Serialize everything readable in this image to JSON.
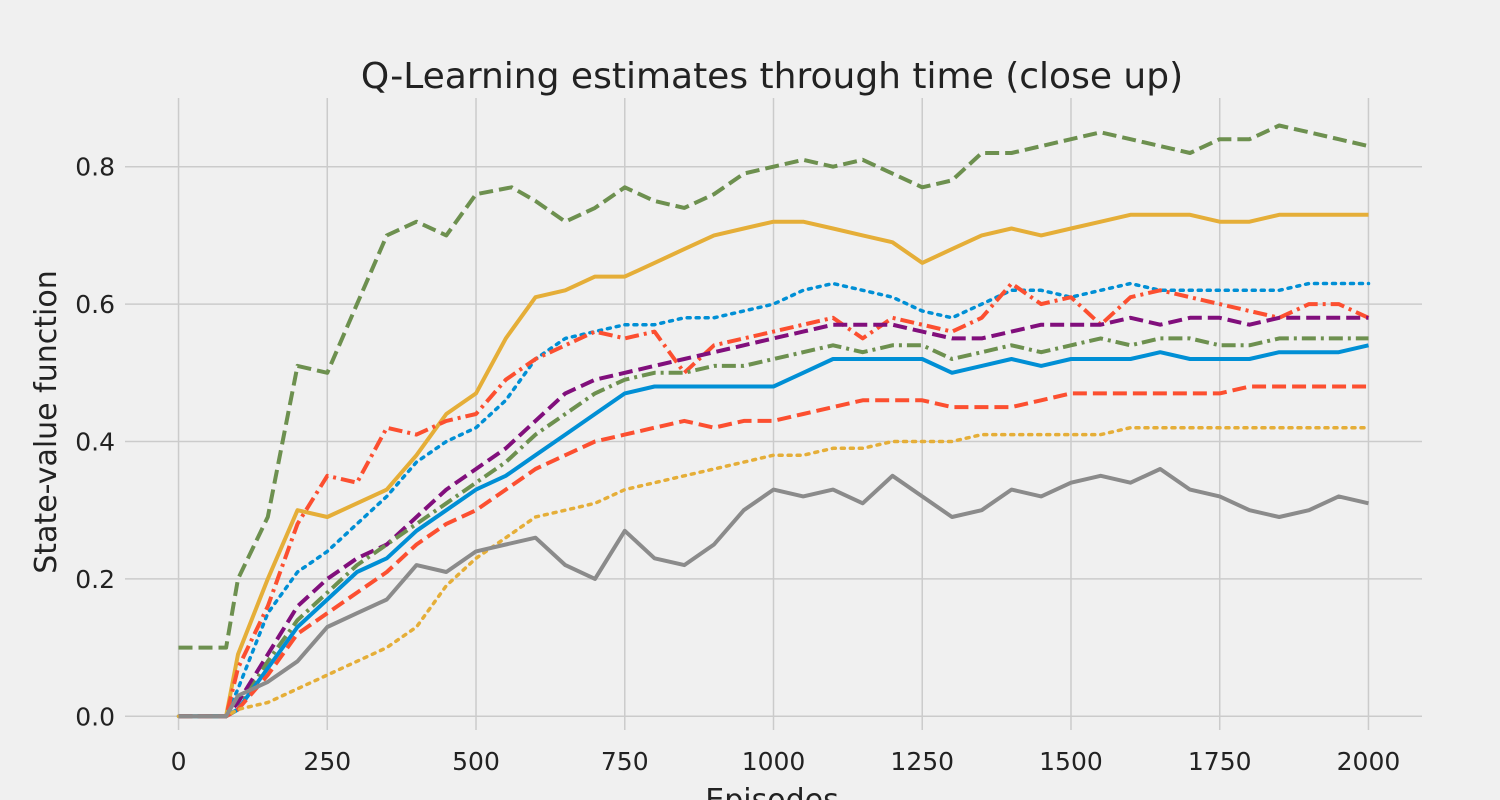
{
  "chart_data": {
    "type": "line",
    "title": "Q-Learning estimates through time (close up)",
    "xlabel": "Episodes",
    "ylabel": "State-value function",
    "xlim": [
      -90,
      2090
    ],
    "ylim": [
      -0.02,
      0.9
    ],
    "xticks": [
      0,
      250,
      500,
      750,
      1000,
      1250,
      1500,
      1750,
      2000
    ],
    "yticks": [
      0.0,
      0.2,
      0.4,
      0.6,
      0.8
    ],
    "xtick_labels": [
      "0",
      "250",
      "500",
      "750",
      "1000",
      "1250",
      "1500",
      "1750",
      "2000"
    ],
    "ytick_labels": [
      "0.0",
      "0.2",
      "0.4",
      "0.6",
      "0.8"
    ],
    "grid": true,
    "legend": "none",
    "series": [
      {
        "color": "#6d904f",
        "style": "dashed",
        "x": [
          0,
          80,
          100,
          150,
          200,
          250,
          300,
          350,
          400,
          450,
          500,
          560,
          600,
          650,
          700,
          750,
          800,
          850,
          900,
          950,
          1000,
          1050,
          1100,
          1150,
          1200,
          1250,
          1300,
          1350,
          1400,
          1450,
          1500,
          1550,
          1600,
          1650,
          1700,
          1750,
          1800,
          1850,
          1900,
          1950,
          2000
        ],
        "y": [
          0.1,
          0.1,
          0.2,
          0.29,
          0.51,
          0.5,
          0.6,
          0.7,
          0.72,
          0.7,
          0.76,
          0.77,
          0.75,
          0.72,
          0.74,
          0.77,
          0.75,
          0.74,
          0.76,
          0.79,
          0.8,
          0.81,
          0.8,
          0.81,
          0.79,
          0.77,
          0.78,
          0.82,
          0.82,
          0.83,
          0.84,
          0.85,
          0.84,
          0.83,
          0.82,
          0.84,
          0.84,
          0.86,
          0.85,
          0.84,
          0.83
        ]
      },
      {
        "color": "#e5ae38",
        "style": "solid",
        "x": [
          0,
          80,
          100,
          150,
          200,
          250,
          300,
          350,
          400,
          450,
          500,
          550,
          600,
          650,
          700,
          750,
          800,
          850,
          900,
          950,
          1000,
          1050,
          1100,
          1150,
          1200,
          1250,
          1300,
          1350,
          1400,
          1450,
          1500,
          1550,
          1600,
          1650,
          1700,
          1750,
          1800,
          1850,
          1900,
          1950,
          2000
        ],
        "y": [
          0.0,
          0.0,
          0.09,
          0.2,
          0.3,
          0.29,
          0.31,
          0.33,
          0.38,
          0.44,
          0.47,
          0.55,
          0.61,
          0.62,
          0.64,
          0.64,
          0.66,
          0.68,
          0.7,
          0.71,
          0.72,
          0.72,
          0.71,
          0.7,
          0.69,
          0.66,
          0.68,
          0.7,
          0.71,
          0.7,
          0.71,
          0.72,
          0.73,
          0.73,
          0.73,
          0.72,
          0.72,
          0.73,
          0.73,
          0.73,
          0.73
        ]
      },
      {
        "color": "#008fd5",
        "style": "dotted",
        "x": [
          0,
          80,
          100,
          150,
          200,
          250,
          300,
          350,
          400,
          450,
          500,
          550,
          600,
          650,
          700,
          750,
          800,
          850,
          900,
          950,
          1000,
          1050,
          1100,
          1150,
          1200,
          1250,
          1300,
          1350,
          1400,
          1450,
          1500,
          1550,
          1600,
          1650,
          1700,
          1750,
          1800,
          1850,
          1900,
          1950,
          2000
        ],
        "y": [
          0.0,
          0.0,
          0.04,
          0.15,
          0.21,
          0.24,
          0.28,
          0.32,
          0.37,
          0.4,
          0.42,
          0.46,
          0.52,
          0.55,
          0.56,
          0.57,
          0.57,
          0.58,
          0.58,
          0.59,
          0.6,
          0.62,
          0.63,
          0.62,
          0.61,
          0.59,
          0.58,
          0.6,
          0.62,
          0.62,
          0.61,
          0.62,
          0.63,
          0.62,
          0.62,
          0.62,
          0.62,
          0.62,
          0.63,
          0.63,
          0.63
        ]
      },
      {
        "color": "#fc4f30",
        "style": "dashdot",
        "x": [
          0,
          80,
          100,
          150,
          200,
          250,
          300,
          350,
          400,
          450,
          500,
          550,
          600,
          650,
          700,
          750,
          800,
          850,
          900,
          950,
          1000,
          1050,
          1100,
          1150,
          1200,
          1250,
          1300,
          1350,
          1400,
          1450,
          1500,
          1550,
          1600,
          1650,
          1700,
          1750,
          1800,
          1850,
          1900,
          1950,
          2000
        ],
        "y": [
          0.0,
          0.0,
          0.07,
          0.16,
          0.28,
          0.35,
          0.34,
          0.42,
          0.41,
          0.43,
          0.44,
          0.49,
          0.52,
          0.54,
          0.56,
          0.55,
          0.56,
          0.5,
          0.54,
          0.55,
          0.56,
          0.57,
          0.58,
          0.55,
          0.58,
          0.57,
          0.56,
          0.58,
          0.63,
          0.6,
          0.61,
          0.57,
          0.61,
          0.62,
          0.61,
          0.6,
          0.59,
          0.58,
          0.6,
          0.6,
          0.58
        ]
      },
      {
        "color": "#810f7c",
        "style": "dashed",
        "x": [
          0,
          80,
          100,
          150,
          200,
          250,
          300,
          350,
          400,
          450,
          500,
          550,
          600,
          650,
          700,
          750,
          800,
          850,
          900,
          950,
          1000,
          1050,
          1100,
          1150,
          1200,
          1250,
          1300,
          1350,
          1400,
          1450,
          1500,
          1550,
          1600,
          1650,
          1700,
          1750,
          1800,
          1850,
          1900,
          1950,
          2000
        ],
        "y": [
          0.0,
          0.0,
          0.02,
          0.09,
          0.16,
          0.2,
          0.23,
          0.25,
          0.29,
          0.33,
          0.36,
          0.39,
          0.43,
          0.47,
          0.49,
          0.5,
          0.51,
          0.52,
          0.53,
          0.54,
          0.55,
          0.56,
          0.57,
          0.57,
          0.57,
          0.56,
          0.55,
          0.55,
          0.56,
          0.57,
          0.57,
          0.57,
          0.58,
          0.57,
          0.58,
          0.58,
          0.57,
          0.58,
          0.58,
          0.58,
          0.58
        ]
      },
      {
        "color": "#6d904f",
        "style": "dashdot",
        "x": [
          0,
          80,
          100,
          150,
          200,
          250,
          300,
          350,
          400,
          450,
          500,
          550,
          600,
          650,
          700,
          750,
          800,
          850,
          900,
          950,
          1000,
          1050,
          1100,
          1150,
          1200,
          1250,
          1300,
          1350,
          1400,
          1450,
          1500,
          1550,
          1600,
          1650,
          1700,
          1750,
          1800,
          1850,
          1900,
          1950,
          2000
        ],
        "y": [
          0.0,
          0.0,
          0.01,
          0.08,
          0.14,
          0.18,
          0.22,
          0.25,
          0.28,
          0.31,
          0.34,
          0.37,
          0.41,
          0.44,
          0.47,
          0.49,
          0.5,
          0.5,
          0.51,
          0.51,
          0.52,
          0.53,
          0.54,
          0.53,
          0.54,
          0.54,
          0.52,
          0.53,
          0.54,
          0.53,
          0.54,
          0.55,
          0.54,
          0.55,
          0.55,
          0.54,
          0.54,
          0.55,
          0.55,
          0.55,
          0.55
        ]
      },
      {
        "color": "#008fd5",
        "style": "solid",
        "x": [
          0,
          80,
          100,
          150,
          200,
          250,
          300,
          350,
          400,
          450,
          500,
          550,
          600,
          650,
          700,
          750,
          800,
          850,
          900,
          950,
          1000,
          1050,
          1100,
          1150,
          1200,
          1250,
          1300,
          1350,
          1400,
          1450,
          1500,
          1550,
          1600,
          1650,
          1700,
          1750,
          1800,
          1850,
          1900,
          1950,
          2000
        ],
        "y": [
          0.0,
          0.0,
          0.01,
          0.07,
          0.13,
          0.17,
          0.21,
          0.23,
          0.27,
          0.3,
          0.33,
          0.35,
          0.38,
          0.41,
          0.44,
          0.47,
          0.48,
          0.48,
          0.48,
          0.48,
          0.48,
          0.5,
          0.52,
          0.52,
          0.52,
          0.52,
          0.5,
          0.51,
          0.52,
          0.51,
          0.52,
          0.52,
          0.52,
          0.53,
          0.52,
          0.52,
          0.52,
          0.53,
          0.53,
          0.53,
          0.54
        ]
      },
      {
        "color": "#fc4f30",
        "style": "dashed",
        "x": [
          0,
          80,
          100,
          150,
          200,
          250,
          300,
          350,
          400,
          450,
          500,
          550,
          600,
          650,
          700,
          750,
          800,
          850,
          900,
          950,
          1000,
          1050,
          1100,
          1150,
          1200,
          1250,
          1300,
          1350,
          1400,
          1450,
          1500,
          1550,
          1600,
          1650,
          1700,
          1750,
          1800,
          1850,
          1900,
          1950,
          2000
        ],
        "y": [
          0.0,
          0.0,
          0.01,
          0.06,
          0.12,
          0.15,
          0.18,
          0.21,
          0.25,
          0.28,
          0.3,
          0.33,
          0.36,
          0.38,
          0.4,
          0.41,
          0.42,
          0.43,
          0.42,
          0.43,
          0.43,
          0.44,
          0.45,
          0.46,
          0.46,
          0.46,
          0.45,
          0.45,
          0.45,
          0.46,
          0.47,
          0.47,
          0.47,
          0.47,
          0.47,
          0.47,
          0.48,
          0.48,
          0.48,
          0.48,
          0.48
        ]
      },
      {
        "color": "#e5ae38",
        "style": "dotted",
        "x": [
          0,
          80,
          100,
          150,
          200,
          250,
          300,
          350,
          400,
          450,
          500,
          550,
          600,
          650,
          700,
          750,
          800,
          850,
          900,
          950,
          1000,
          1050,
          1100,
          1150,
          1200,
          1250,
          1300,
          1350,
          1400,
          1450,
          1500,
          1550,
          1600,
          1650,
          1700,
          1750,
          1800,
          1850,
          1900,
          1950,
          2000
        ],
        "y": [
          0.0,
          0.0,
          0.01,
          0.02,
          0.04,
          0.06,
          0.08,
          0.1,
          0.13,
          0.19,
          0.23,
          0.26,
          0.29,
          0.3,
          0.31,
          0.33,
          0.34,
          0.35,
          0.36,
          0.37,
          0.38,
          0.38,
          0.39,
          0.39,
          0.4,
          0.4,
          0.4,
          0.41,
          0.41,
          0.41,
          0.41,
          0.41,
          0.42,
          0.42,
          0.42,
          0.42,
          0.42,
          0.42,
          0.42,
          0.42,
          0.42
        ]
      },
      {
        "color": "#8b8b8b",
        "style": "solid",
        "x": [
          0,
          80,
          100,
          150,
          200,
          250,
          300,
          350,
          400,
          450,
          500,
          550,
          600,
          650,
          700,
          750,
          800,
          850,
          900,
          950,
          1000,
          1050,
          1100,
          1150,
          1200,
          1250,
          1300,
          1350,
          1400,
          1450,
          1500,
          1550,
          1600,
          1650,
          1700,
          1750,
          1800,
          1850,
          1900,
          1950,
          2000
        ],
        "y": [
          0.0,
          0.0,
          0.03,
          0.05,
          0.08,
          0.13,
          0.15,
          0.17,
          0.22,
          0.21,
          0.24,
          0.25,
          0.26,
          0.22,
          0.2,
          0.27,
          0.23,
          0.22,
          0.25,
          0.3,
          0.33,
          0.32,
          0.33,
          0.31,
          0.35,
          0.32,
          0.29,
          0.3,
          0.33,
          0.32,
          0.34,
          0.35,
          0.34,
          0.36,
          0.33,
          0.32,
          0.3,
          0.29,
          0.3,
          0.32,
          0.31
        ]
      }
    ]
  }
}
